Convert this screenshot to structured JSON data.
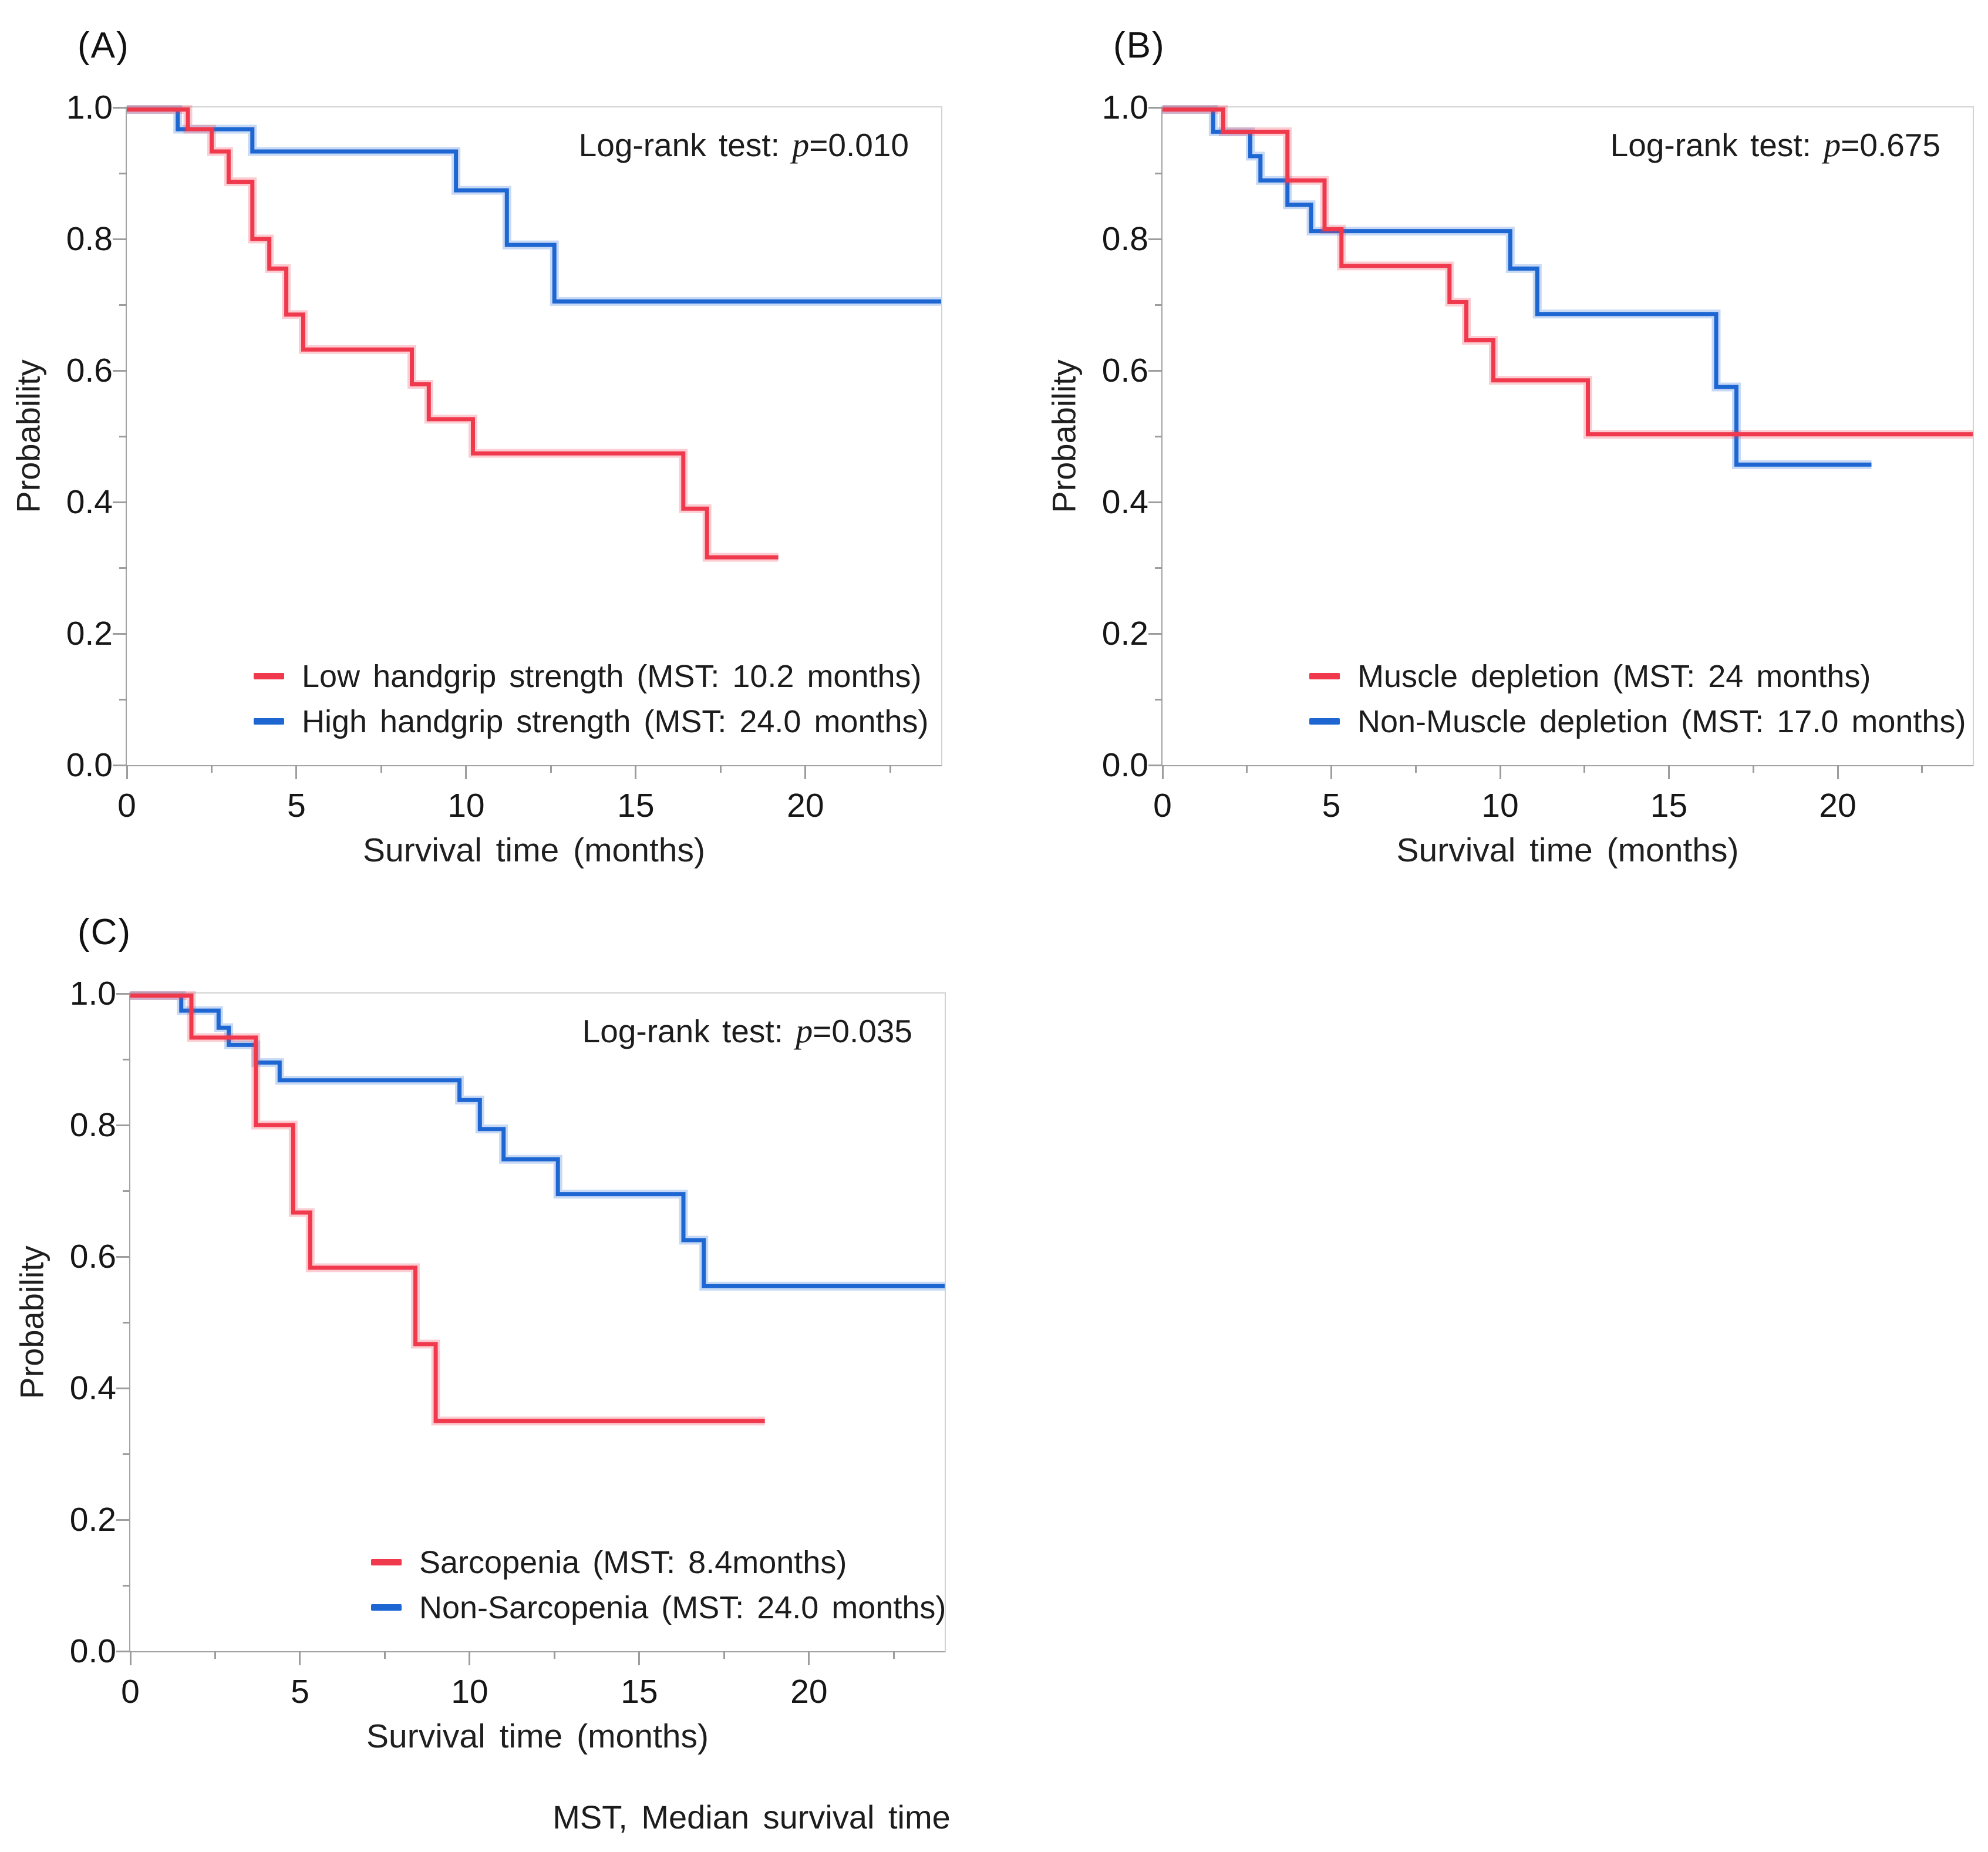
{
  "footer": "MST, Median survival time",
  "colors": {
    "red": "#f0394d",
    "blue": "#1e67d3",
    "axis": "#9d9d9d",
    "border": "#d2d2d2",
    "text": "#1c1c1c"
  },
  "chart_data": [
    {
      "type": "line",
      "subtype": "kaplan-meier-step",
      "panel_label": "(A)",
      "xlabel": "Survival time (months)",
      "ylabel": "Probability",
      "xlim": [
        0,
        24
      ],
      "ylim": [
        0,
        1
      ],
      "grid": false,
      "xticks": {
        "major": [
          0,
          5,
          10,
          15,
          20
        ],
        "minor": [
          2.5,
          7.5,
          12.5,
          17.5,
          22.5
        ],
        "labels": [
          "0",
          "5",
          "10",
          "15",
          "20"
        ]
      },
      "yticks": {
        "major": [
          1.0,
          0.8,
          0.6,
          0.4,
          0.2,
          0.0
        ],
        "minor": [
          0.9,
          0.7,
          0.5,
          0.3,
          0.1
        ],
        "labels": [
          "1.0",
          "0.8",
          "0.6",
          "0.4",
          "0.2",
          "0.0"
        ]
      },
      "annotation": {
        "prefix": "Log-rank test: ",
        "p": "p",
        "value": "=0.010"
      },
      "legend_position": "inside-bottom-center",
      "series": [
        {
          "name": "Low handgrip strength",
          "label": "Low handgrip strength (MST: 10.2 months)",
          "color": "#f0394d",
          "start_p": 1.0,
          "end_t": 19.2,
          "steps": [
            [
              1.8,
              0.967
            ],
            [
              2.5,
              0.933
            ],
            [
              3.0,
              0.887
            ],
            [
              3.7,
              0.8
            ],
            [
              4.2,
              0.755
            ],
            [
              4.7,
              0.685
            ],
            [
              5.2,
              0.632
            ],
            [
              8.4,
              0.579
            ],
            [
              8.9,
              0.526
            ],
            [
              10.2,
              0.474
            ],
            [
              16.4,
              0.39
            ],
            [
              17.1,
              0.316
            ]
          ]
        },
        {
          "name": "High handgrip strength",
          "label": "High handgrip strength (MST: 24.0 months)",
          "color": "#1e67d3",
          "start_p": 1.0,
          "end_t": 24,
          "steps": [
            [
              1.5,
              0.967
            ],
            [
              3.7,
              0.933
            ],
            [
              9.7,
              0.874
            ],
            [
              11.2,
              0.791
            ],
            [
              12.6,
              0.705
            ]
          ]
        }
      ]
    },
    {
      "type": "line",
      "subtype": "kaplan-meier-step",
      "panel_label": "(B)",
      "xlabel": "Survival time (months)",
      "ylabel": "Probability",
      "xlim": [
        0,
        24
      ],
      "ylim": [
        0,
        1
      ],
      "grid": false,
      "xticks": {
        "major": [
          0,
          5,
          10,
          15,
          20
        ],
        "minor": [
          2.5,
          7.5,
          12.5,
          17.5,
          22.5
        ],
        "labels": [
          "0",
          "5",
          "10",
          "15",
          "20"
        ]
      },
      "yticks": {
        "major": [
          1.0,
          0.8,
          0.6,
          0.4,
          0.2,
          0.0
        ],
        "minor": [
          0.9,
          0.7,
          0.5,
          0.3,
          0.1
        ],
        "labels": [
          "1.0",
          "0.8",
          "0.6",
          "0.4",
          "0.2",
          "0.0"
        ]
      },
      "annotation": {
        "prefix": "Log-rank test: ",
        "p": "p",
        "value": "=0.675"
      },
      "legend_position": "inside-bottom-center",
      "series": [
        {
          "name": "Muscle depletion",
          "label": "Muscle depletion (MST: 24 months)",
          "color": "#f0394d",
          "start_p": 1.0,
          "end_t": 24,
          "steps": [
            [
              1.8,
              0.963
            ],
            [
              3.7,
              0.889
            ],
            [
              4.8,
              0.815
            ],
            [
              5.3,
              0.759
            ],
            [
              8.5,
              0.704
            ],
            [
              9.0,
              0.646
            ],
            [
              9.8,
              0.585
            ],
            [
              12.6,
              0.503
            ]
          ]
        },
        {
          "name": "Non-Muscle depletion",
          "label": "Non-Muscle depletion (MST: 17.0 months)",
          "color": "#1e67d3",
          "start_p": 1.0,
          "end_t": 21.0,
          "steps": [
            [
              1.5,
              0.963
            ],
            [
              2.6,
              0.926
            ],
            [
              2.9,
              0.889
            ],
            [
              3.7,
              0.852
            ],
            [
              4.4,
              0.812
            ],
            [
              10.3,
              0.755
            ],
            [
              11.1,
              0.686
            ],
            [
              16.4,
              0.575
            ],
            [
              17.0,
              0.457
            ]
          ]
        }
      ]
    },
    {
      "type": "line",
      "subtype": "kaplan-meier-step",
      "panel_label": "(C)",
      "xlabel": "Survival time (months)",
      "ylabel": "Probability",
      "xlim": [
        0,
        24
      ],
      "ylim": [
        0,
        1
      ],
      "grid": false,
      "xticks": {
        "major": [
          0,
          5,
          10,
          15,
          20
        ],
        "minor": [
          2.5,
          7.5,
          12.5,
          17.5,
          22.5
        ],
        "labels": [
          "0",
          "5",
          "10",
          "15",
          "20"
        ]
      },
      "yticks": {
        "major": [
          1.0,
          0.8,
          0.6,
          0.4,
          0.2,
          0.0
        ],
        "minor": [
          0.9,
          0.7,
          0.5,
          0.3,
          0.1
        ],
        "labels": [
          "1.0",
          "0.8",
          "0.6",
          "0.4",
          "0.2",
          "0.0"
        ]
      },
      "annotation": {
        "prefix": "Log-rank test: ",
        "p": "p",
        "value": "=0.035"
      },
      "legend_position": "inside-bottom-center",
      "series": [
        {
          "name": "Sarcopenia",
          "label": "Sarcopenia (MST: 8.4months)",
          "color": "#f0394d",
          "start_p": 1.0,
          "end_t": 18.7,
          "steps": [
            [
              1.8,
              0.933
            ],
            [
              3.7,
              0.8
            ],
            [
              4.8,
              0.667
            ],
            [
              5.3,
              0.583
            ],
            [
              8.4,
              0.467
            ],
            [
              9.0,
              0.35
            ]
          ]
        },
        {
          "name": "Non-Sarcopenia",
          "label": "Non-Sarcopenia (MST: 24.0 months)",
          "color": "#1e67d3",
          "start_p": 1.0,
          "end_t": 24,
          "steps": [
            [
              1.5,
              0.974
            ],
            [
              2.6,
              0.948
            ],
            [
              2.9,
              0.922
            ],
            [
              3.7,
              0.895
            ],
            [
              4.4,
              0.868
            ],
            [
              9.7,
              0.838
            ],
            [
              10.3,
              0.794
            ],
            [
              11.0,
              0.748
            ],
            [
              12.6,
              0.695
            ],
            [
              16.3,
              0.625
            ],
            [
              16.9,
              0.555
            ]
          ]
        }
      ]
    }
  ]
}
